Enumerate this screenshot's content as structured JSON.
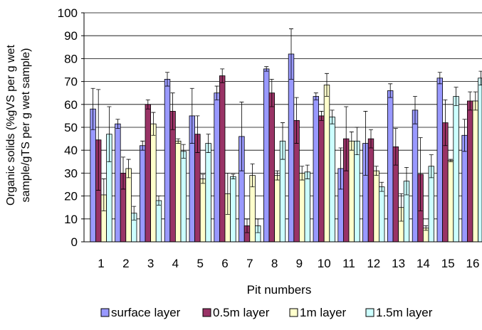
{
  "chart_data": {
    "type": "bar",
    "xlabel": "Pit numbers",
    "ylabel_line1": "Organic solids (%gVS per g wet",
    "ylabel_line2": "sample/gTS per g wet sample)",
    "ylim": [
      0,
      100
    ],
    "yticks": [
      0,
      10,
      20,
      30,
      40,
      50,
      60,
      70,
      80,
      90,
      100
    ],
    "grid": true,
    "legend_position": "bottom",
    "categories": [
      "1",
      "2",
      "3",
      "4",
      "5",
      "6",
      "7",
      "8",
      "9",
      "10",
      "11",
      "12",
      "13",
      "14",
      "15",
      "16"
    ],
    "series": [
      {
        "name": "surface layer",
        "color": "#9999ff",
        "values": [
          58,
          51.5,
          42,
          71,
          55,
          65,
          46,
          75.5,
          82,
          63.5,
          32,
          43,
          66,
          57.5,
          71.5,
          46.5
        ],
        "errors": [
          9,
          2,
          2,
          3,
          12,
          3,
          15,
          1,
          11,
          1.5,
          9,
          14,
          3,
          6,
          2.5,
          7
        ]
      },
      {
        "name": "0.5m layer",
        "color": "#993366",
        "values": [
          44.5,
          30,
          60,
          57,
          47,
          72.5,
          7,
          65,
          53,
          55,
          45,
          45,
          41.5,
          29.5,
          52,
          61.5
        ],
        "errors": [
          22,
          7,
          2,
          8,
          8,
          3,
          3,
          6,
          10,
          2,
          14,
          4,
          8,
          16,
          10,
          4
        ]
      },
      {
        "name": "1m layer",
        "color": "#ffffcc",
        "values": [
          20.5,
          32,
          51.5,
          44,
          27.5,
          21,
          29,
          29,
          30,
          68.5,
          44,
          31,
          15,
          6,
          35.5,
          61.5
        ],
        "errors": [
          7,
          4,
          5,
          1,
          2,
          9,
          5,
          2,
          3,
          5,
          4,
          2,
          6,
          1,
          0.5,
          4
        ]
      },
      {
        "name": "1.5m layer",
        "color": "#ccffff",
        "values": [
          47,
          12.5,
          18,
          39.5,
          43,
          28.5,
          7,
          44,
          30.5,
          54.5,
          44,
          24,
          26.5,
          33,
          63.5,
          71.5
        ],
        "errors": [
          12,
          3,
          2,
          3,
          4,
          1,
          3,
          8,
          3,
          3,
          6,
          2,
          6,
          5,
          4,
          3
        ]
      }
    ]
  }
}
